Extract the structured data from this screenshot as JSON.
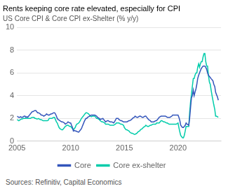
{
  "chart_data": {
    "type": "line",
    "title": "Rents keeping core rate elevated, especially for CPI",
    "subtitle": "US Core CPI & Core CPI ex-Shelter (% y/y)",
    "source": "Sources: Refinitiv, Capital Economics",
    "xlim": [
      2005,
      2024.0
    ],
    "xticks": [
      2005,
      2010,
      2015,
      2020
    ],
    "ylim": [
      0,
      10
    ],
    "yticks": [
      0,
      2,
      4,
      6,
      8,
      10
    ],
    "grid": "y",
    "legend": "bottom",
    "x": [
      2005.0,
      2005.08,
      2005.17,
      2005.25,
      2005.33,
      2005.42,
      2005.5,
      2005.58,
      2005.67,
      2005.75,
      2005.83,
      2005.92,
      2006.0,
      2006.08,
      2006.17,
      2006.25,
      2006.33,
      2006.42,
      2006.5,
      2006.58,
      2006.67,
      2006.75,
      2006.83,
      2006.92,
      2007.0,
      2007.08,
      2007.17,
      2007.25,
      2007.33,
      2007.42,
      2007.5,
      2007.58,
      2007.67,
      2007.75,
      2007.83,
      2007.92,
      2008.0,
      2008.08,
      2008.17,
      2008.25,
      2008.33,
      2008.42,
      2008.5,
      2008.58,
      2008.67,
      2008.75,
      2008.83,
      2008.92,
      2009.0,
      2009.08,
      2009.17,
      2009.25,
      2009.33,
      2009.42,
      2009.5,
      2009.58,
      2009.67,
      2009.75,
      2009.83,
      2009.92,
      2010.0,
      2010.08,
      2010.17,
      2010.25,
      2010.33,
      2010.42,
      2010.5,
      2010.58,
      2010.67,
      2010.75,
      2010.83,
      2010.92,
      2011.0,
      2011.08,
      2011.17,
      2011.25,
      2011.33,
      2011.42,
      2011.5,
      2011.58,
      2011.67,
      2011.75,
      2011.83,
      2011.92,
      2012.0,
      2012.08,
      2012.17,
      2012.25,
      2012.33,
      2012.42,
      2012.5,
      2012.58,
      2012.67,
      2012.75,
      2012.83,
      2012.92,
      2013.0,
      2013.08,
      2013.17,
      2013.25,
      2013.33,
      2013.42,
      2013.5,
      2013.58,
      2013.67,
      2013.75,
      2013.83,
      2013.92,
      2014.0,
      2014.08,
      2014.17,
      2014.25,
      2014.33,
      2014.42,
      2014.5,
      2014.58,
      2014.67,
      2014.75,
      2014.83,
      2014.92,
      2015.0,
      2015.08,
      2015.17,
      2015.25,
      2015.33,
      2015.42,
      2015.5,
      2015.58,
      2015.67,
      2015.75,
      2015.83,
      2015.92,
      2016.0,
      2016.08,
      2016.17,
      2016.25,
      2016.33,
      2016.42,
      2016.5,
      2016.58,
      2016.67,
      2016.75,
      2016.83,
      2016.92,
      2017.0,
      2017.08,
      2017.17,
      2017.25,
      2017.33,
      2017.42,
      2017.5,
      2017.58,
      2017.67,
      2017.75,
      2017.83,
      2017.92,
      2018.0,
      2018.08,
      2018.17,
      2018.25,
      2018.33,
      2018.42,
      2018.5,
      2018.58,
      2018.67,
      2018.75,
      2018.83,
      2018.92,
      2019.0,
      2019.08,
      2019.17,
      2019.25,
      2019.33,
      2019.42,
      2019.5,
      2019.58,
      2019.67,
      2019.75,
      2019.83,
      2019.92,
      2020.0,
      2020.08,
      2020.17,
      2020.25,
      2020.33,
      2020.42,
      2020.5,
      2020.58,
      2020.67,
      2020.75,
      2020.83,
      2020.92,
      2021.0,
      2021.08,
      2021.17,
      2021.25,
      2021.33,
      2021.42,
      2021.5,
      2021.58,
      2021.67,
      2021.75,
      2021.83,
      2021.92,
      2022.0,
      2022.08,
      2022.17,
      2022.25,
      2022.33,
      2022.42,
      2022.5,
      2022.58,
      2022.67,
      2022.75,
      2022.83,
      2022.92,
      2023.0,
      2023.08,
      2023.17,
      2023.25,
      2023.33,
      2023.42,
      2023.5,
      2023.58,
      2023.67,
      2023.75
    ],
    "series": [
      {
        "name": "Core",
        "color": "#3355bb",
        "values": [
          2.2,
          2.15,
          2.1,
          2.1,
          2.15,
          2.1,
          2.1,
          2.15,
          2.2,
          2.2,
          2.1,
          2.15,
          2.1,
          2.2,
          2.3,
          2.4,
          2.5,
          2.6,
          2.6,
          2.65,
          2.7,
          2.7,
          2.6,
          2.5,
          2.5,
          2.45,
          2.4,
          2.3,
          2.3,
          2.25,
          2.2,
          2.25,
          2.3,
          2.4,
          2.35,
          2.3,
          2.3,
          2.35,
          2.4,
          2.4,
          2.45,
          2.5,
          2.5,
          2.4,
          2.2,
          2.0,
          1.9,
          1.85,
          1.8,
          1.75,
          1.7,
          1.7,
          1.65,
          1.6,
          1.5,
          1.55,
          1.6,
          1.7,
          1.65,
          1.6,
          1.6,
          1.4,
          1.2,
          0.9,
          0.95,
          0.9,
          0.9,
          0.85,
          0.82,
          0.8,
          0.9,
          1.0,
          1.1,
          1.3,
          1.5,
          1.7,
          1.85,
          2.0,
          2.0,
          2.1,
          2.15,
          2.2,
          2.25,
          2.3,
          2.3,
          2.3,
          2.3,
          2.3,
          2.25,
          2.2,
          2.1,
          2.05,
          2.0,
          1.9,
          1.95,
          1.95,
          2.0,
          1.9,
          1.8,
          1.7,
          1.75,
          1.8,
          1.8,
          1.75,
          1.7,
          1.7,
          1.7,
          1.65,
          1.6,
          1.7,
          1.85,
          2.0,
          2.0,
          2.0,
          1.9,
          1.85,
          1.8,
          1.8,
          1.75,
          1.7,
          1.7,
          1.7,
          1.7,
          1.7,
          1.75,
          1.8,
          1.8,
          1.85,
          1.9,
          2.0,
          2.05,
          2.1,
          2.2,
          2.15,
          2.1,
          2.1,
          2.15,
          2.2,
          2.2,
          2.15,
          2.1,
          2.1,
          2.15,
          2.2,
          2.2,
          2.1,
          2.0,
          1.9,
          1.85,
          1.8,
          1.7,
          1.7,
          1.7,
          1.7,
          1.75,
          1.8,
          1.8,
          1.9,
          2.0,
          2.1,
          2.15,
          2.2,
          2.2,
          2.2,
          2.2,
          2.2,
          2.2,
          2.15,
          2.1,
          2.1,
          2.1,
          2.1,
          2.15,
          2.2,
          2.3,
          2.3,
          2.3,
          2.3,
          2.3,
          2.3,
          2.3,
          2.1,
          1.8,
          1.4,
          1.3,
          1.2,
          1.2,
          1.3,
          1.4,
          1.6,
          1.5,
          1.45,
          1.4,
          2.0,
          3.0,
          3.8,
          4.0,
          4.5,
          4.0,
          4.3,
          4.6,
          5.0,
          5.5,
          5.8,
          6.0,
          6.2,
          6.4,
          6.5,
          6.6,
          6.6,
          6.6,
          6.5,
          6.3,
          6.0,
          5.8,
          5.7,
          5.6,
          5.5,
          5.4,
          5.3,
          5.0,
          4.8,
          4.3,
          4.1,
          3.9,
          3.6
        ]
      },
      {
        "name": "Core ex-shelter",
        "color": "#00ccaa",
        "values": [
          1.9,
          1.85,
          1.8,
          1.85,
          1.9,
          1.95,
          1.95,
          2.0,
          2.0,
          2.0,
          2.0,
          2.0,
          2.0,
          2.0,
          2.0,
          2.0,
          2.05,
          2.1,
          2.1,
          2.1,
          2.0,
          2.0,
          1.95,
          1.95,
          2.0,
          1.95,
          1.9,
          1.9,
          1.85,
          1.8,
          1.8,
          1.8,
          1.8,
          1.8,
          1.8,
          1.85,
          2.0,
          2.0,
          2.0,
          2.0,
          2.05,
          2.1,
          2.1,
          1.9,
          1.7,
          1.6,
          1.4,
          1.2,
          1.1,
          1.05,
          1.0,
          1.0,
          1.1,
          1.2,
          1.3,
          1.35,
          1.4,
          1.4,
          1.35,
          1.3,
          1.3,
          1.2,
          1.1,
          1.0,
          1.1,
          1.2,
          1.4,
          1.5,
          1.55,
          1.6,
          1.7,
          1.85,
          2.0,
          2.1,
          2.2,
          2.3,
          2.4,
          2.5,
          2.5,
          2.45,
          2.4,
          2.3,
          2.2,
          2.15,
          2.2,
          2.2,
          2.2,
          2.2,
          2.1,
          2.0,
          2.0,
          1.95,
          1.9,
          1.8,
          1.75,
          1.7,
          1.7,
          1.65,
          1.6,
          1.5,
          1.5,
          1.5,
          1.5,
          1.45,
          1.4,
          1.4,
          1.4,
          1.4,
          1.4,
          1.45,
          1.5,
          1.6,
          1.6,
          1.6,
          1.6,
          1.55,
          1.5,
          1.5,
          1.45,
          1.4,
          1.2,
          1.1,
          1.0,
          1.0,
          0.95,
          0.9,
          0.8,
          0.75,
          0.7,
          0.7,
          0.65,
          0.6,
          0.6,
          0.65,
          0.7,
          0.8,
          0.85,
          0.9,
          1.0,
          1.05,
          1.1,
          1.2,
          1.25,
          1.3,
          1.4,
          1.35,
          1.3,
          1.3,
          1.35,
          1.4,
          1.4,
          1.45,
          1.5,
          1.5,
          1.5,
          1.5,
          1.6,
          1.6,
          1.6,
          1.6,
          1.7,
          1.8,
          1.8,
          1.75,
          1.7,
          1.7,
          1.65,
          1.6,
          1.6,
          1.55,
          1.5,
          1.5,
          1.5,
          1.5,
          1.5,
          1.5,
          1.5,
          1.5,
          1.5,
          1.55,
          1.6,
          1.2,
          0.8,
          0.5,
          0.4,
          0.3,
          0.3,
          0.5,
          0.9,
          1.3,
          1.3,
          1.3,
          1.3,
          2.5,
          3.5,
          4.1,
          4.8,
          5.5,
          5.5,
          5.8,
          6.0,
          6.0,
          6.5,
          6.8,
          6.5,
          6.8,
          7.0,
          7.0,
          7.4,
          7.7,
          7.7,
          7.0,
          6.6,
          6.6,
          5.8,
          5.2,
          5.0,
          4.5,
          4.0,
          3.6,
          3.2,
          2.8,
          2.2,
          2.2,
          2.15,
          2.1
        ]
      }
    ]
  }
}
